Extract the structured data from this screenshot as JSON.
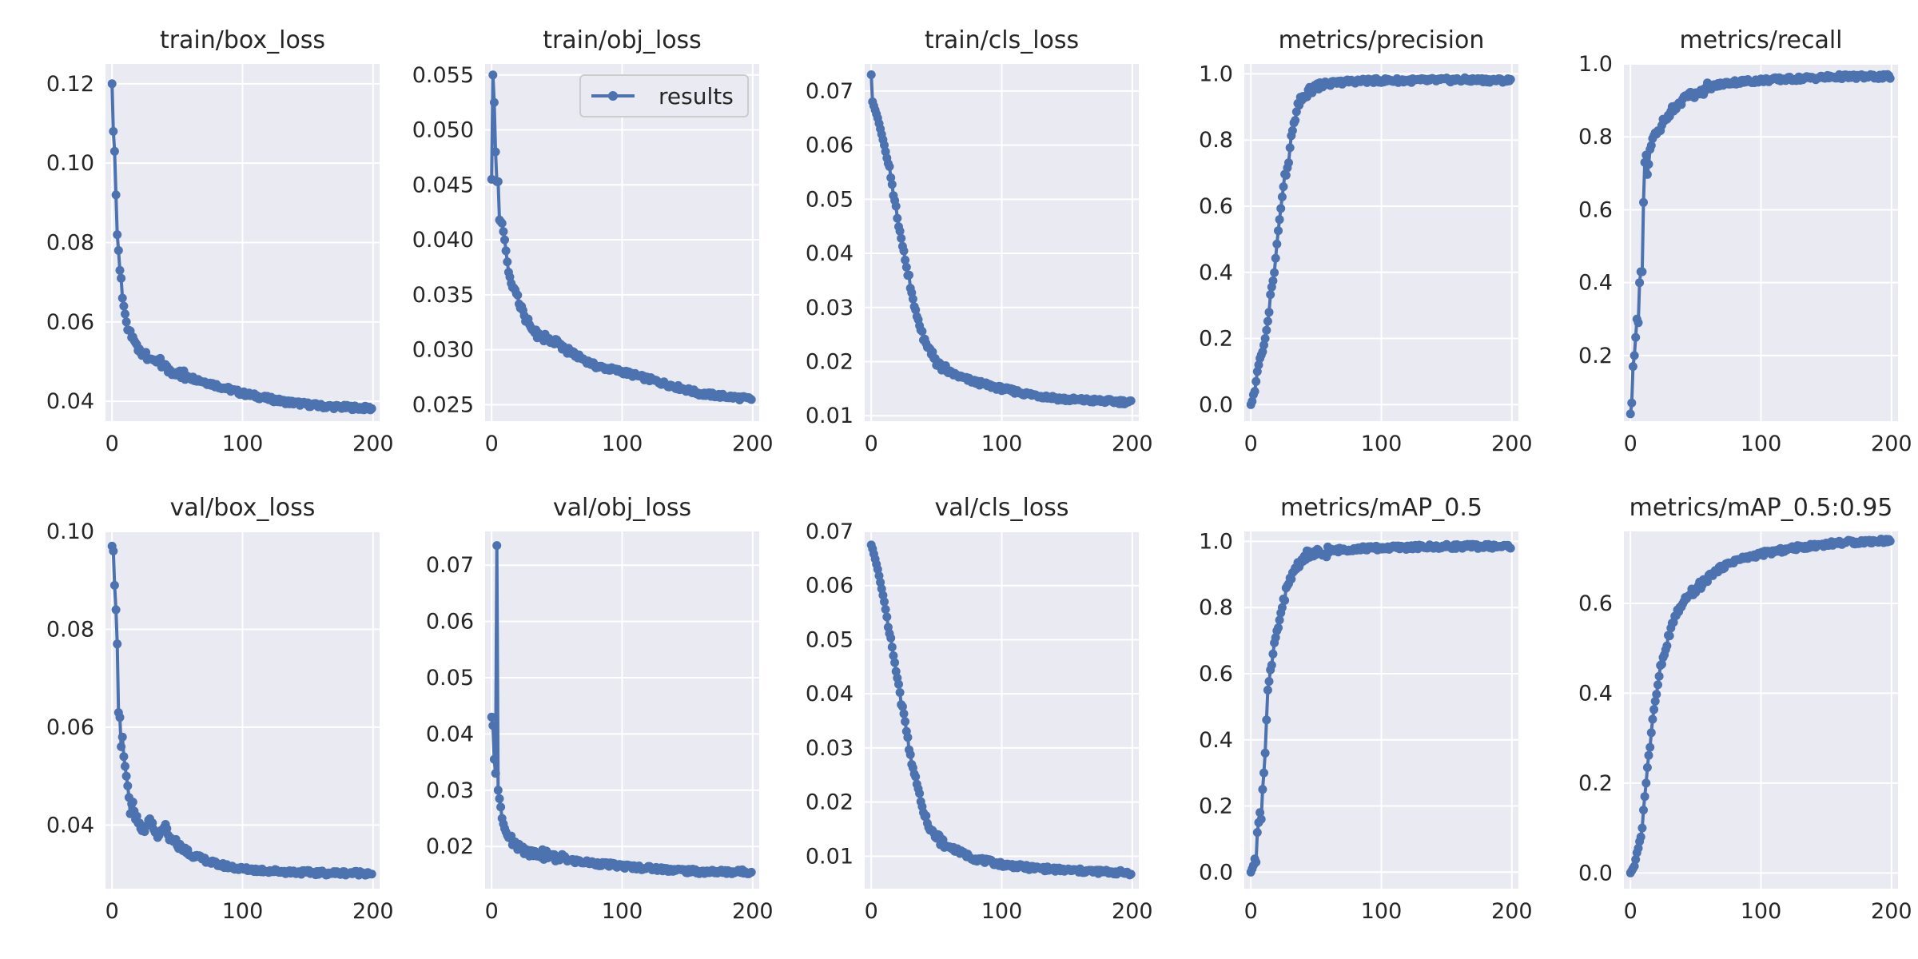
{
  "colors": {
    "series": "#4c72b0",
    "axes_bg": "#eaeaf2",
    "grid": "#ffffff",
    "text": "#262626",
    "legend_border": "#cccccc"
  },
  "chart_data": [
    {
      "type": "line",
      "title": "train/box_loss",
      "xlim": [
        -5,
        205
      ],
      "ylim": [
        0.035,
        0.125
      ],
      "xticks": [
        0,
        100,
        200
      ],
      "yticks": [
        0.04,
        0.06,
        0.08,
        0.1,
        0.12
      ],
      "ytick_labels": [
        "0.04",
        "0.06",
        "0.08",
        "0.10",
        "0.12"
      ],
      "grid": true,
      "curve": {
        "type": "decay",
        "x": [
          0,
          1,
          2,
          3,
          4,
          5,
          6,
          7,
          8,
          10,
          12,
          15,
          20,
          30,
          40,
          50,
          70,
          100,
          130,
          160,
          199
        ],
        "y": [
          0.12,
          0.108,
          0.103,
          0.092,
          0.082,
          0.078,
          0.073,
          0.071,
          0.066,
          0.062,
          0.058,
          0.056,
          0.053,
          0.051,
          0.049,
          0.047,
          0.045,
          0.042,
          0.04,
          0.0388,
          0.0382
        ]
      }
    },
    {
      "type": "line",
      "title": "train/obj_loss",
      "xlim": [
        -5,
        205
      ],
      "ylim": [
        0.0235,
        0.056
      ],
      "xticks": [
        0,
        100,
        200
      ],
      "yticks": [
        0.025,
        0.03,
        0.035,
        0.04,
        0.045,
        0.05,
        0.055
      ],
      "ytick_labels": [
        "0.025",
        "0.030",
        "0.035",
        "0.040",
        "0.045",
        "0.050",
        "0.055"
      ],
      "grid": true,
      "legend": {
        "label": "results",
        "position": "upper right"
      },
      "curve": {
        "type": "decay",
        "x": [
          0,
          1,
          2,
          3,
          4,
          5,
          6,
          8,
          10,
          12,
          15,
          20,
          25,
          30,
          40,
          50,
          60,
          80,
          100,
          130,
          160,
          199
        ],
        "y": [
          0.0455,
          0.055,
          0.0525,
          0.048,
          0.0453,
          0.0453,
          0.0418,
          0.0415,
          0.04,
          0.038,
          0.036,
          0.0345,
          0.033,
          0.032,
          0.031,
          0.0305,
          0.0298,
          0.0285,
          0.028,
          0.027,
          0.026,
          0.0255
        ]
      }
    },
    {
      "type": "line",
      "title": "train/cls_loss",
      "xlim": [
        -5,
        205
      ],
      "ylim": [
        0.009,
        0.075
      ],
      "xticks": [
        0,
        100,
        200
      ],
      "yticks": [
        0.01,
        0.02,
        0.03,
        0.04,
        0.05,
        0.06,
        0.07
      ],
      "ytick_labels": [
        "0.01",
        "0.02",
        "0.03",
        "0.04",
        "0.05",
        "0.06",
        "0.07"
      ],
      "grid": true,
      "curve": {
        "type": "decay",
        "x": [
          0,
          1,
          5,
          10,
          15,
          20,
          25,
          30,
          35,
          40,
          45,
          50,
          60,
          70,
          80,
          100,
          120,
          150,
          199
        ],
        "y": [
          0.073,
          0.068,
          0.065,
          0.06,
          0.054,
          0.047,
          0.04,
          0.034,
          0.028,
          0.0245,
          0.0215,
          0.0198,
          0.018,
          0.017,
          0.0162,
          0.015,
          0.014,
          0.013,
          0.0125
        ]
      }
    },
    {
      "type": "line",
      "title": "metrics/precision",
      "xlim": [
        -5,
        205
      ],
      "ylim": [
        -0.05,
        1.03
      ],
      "xticks": [
        0,
        100,
        200
      ],
      "yticks": [
        0,
        0.2,
        0.4,
        0.6,
        0.8,
        1.0
      ],
      "ytick_labels": [
        "0.0",
        "0.2",
        "0.4",
        "0.6",
        "0.8",
        "1.0"
      ],
      "grid": true,
      "curve": {
        "type": "rise",
        "x": [
          0,
          1,
          2,
          3,
          5,
          7,
          9,
          11,
          13,
          15,
          17,
          19,
          21,
          23,
          25,
          27,
          29,
          31,
          33,
          35,
          37,
          40,
          45,
          50,
          60,
          70,
          80,
          100,
          130,
          160,
          199
        ],
        "y": [
          0,
          0.01,
          0.03,
          0.04,
          0.1,
          0.14,
          0.16,
          0.2,
          0.25,
          0.33,
          0.37,
          0.45,
          0.52,
          0.6,
          0.66,
          0.7,
          0.74,
          0.8,
          0.85,
          0.88,
          0.91,
          0.93,
          0.95,
          0.96,
          0.97,
          0.975,
          0.978,
          0.98,
          0.98,
          0.982,
          0.98
        ]
      }
    },
    {
      "type": "line",
      "title": "metrics/recall",
      "xlim": [
        -5,
        205
      ],
      "ylim": [
        0.02,
        1.0
      ],
      "xticks": [
        0,
        100,
        200
      ],
      "yticks": [
        0.2,
        0.4,
        0.6,
        0.8,
        1.0
      ],
      "ytick_labels": [
        "0.2",
        "0.4",
        "0.6",
        "0.8",
        "1.0"
      ],
      "grid": true,
      "curve": {
        "type": "rise",
        "x": [
          0,
          1,
          2,
          3,
          4,
          5,
          6,
          7,
          8,
          9,
          10,
          11,
          12,
          13,
          14,
          15,
          16,
          18,
          20,
          22,
          25,
          30,
          35,
          40,
          50,
          60,
          70,
          80,
          100,
          130,
          160,
          199
        ],
        "y": [
          0.04,
          0.07,
          0.17,
          0.2,
          0.25,
          0.3,
          0.29,
          0.4,
          0.43,
          0.43,
          0.62,
          0.73,
          0.75,
          0.7,
          0.72,
          0.76,
          0.78,
          0.8,
          0.81,
          0.82,
          0.84,
          0.86,
          0.88,
          0.9,
          0.92,
          0.935,
          0.945,
          0.95,
          0.955,
          0.96,
          0.965,
          0.965
        ]
      }
    },
    {
      "type": "line",
      "title": "val/box_loss",
      "xlim": [
        -5,
        205
      ],
      "ylim": [
        0.027,
        0.1
      ],
      "xticks": [
        0,
        100,
        200
      ],
      "yticks": [
        0.04,
        0.06,
        0.08,
        0.1
      ],
      "ytick_labels": [
        "0.04",
        "0.06",
        "0.08",
        "0.10"
      ],
      "grid": true,
      "curve": {
        "type": "decay",
        "x": [
          0,
          1,
          2,
          3,
          4,
          5,
          6,
          7,
          8,
          9,
          10,
          12,
          14,
          16,
          18,
          20,
          25,
          30,
          35,
          40,
          45,
          50,
          60,
          70,
          80,
          100,
          130,
          160,
          199
        ],
        "y": [
          0.097,
          0.096,
          0.089,
          0.084,
          0.077,
          0.063,
          0.062,
          0.056,
          0.058,
          0.054,
          0.052,
          0.048,
          0.043,
          0.045,
          0.042,
          0.04,
          0.039,
          0.041,
          0.037,
          0.04,
          0.037,
          0.036,
          0.034,
          0.033,
          0.032,
          0.031,
          0.0305,
          0.0302,
          0.0302
        ]
      }
    },
    {
      "type": "line",
      "title": "val/obj_loss",
      "xlim": [
        -5,
        205
      ],
      "ylim": [
        0.0125,
        0.076
      ],
      "xticks": [
        0,
        100,
        200
      ],
      "yticks": [
        0.02,
        0.03,
        0.04,
        0.05,
        0.06,
        0.07
      ],
      "ytick_labels": [
        "0.02",
        "0.03",
        "0.04",
        "0.05",
        "0.06",
        "0.07"
      ],
      "grid": true,
      "curve": {
        "type": "decay",
        "x": [
          0,
          1,
          2,
          3,
          4,
          5,
          6,
          7,
          8,
          9,
          10,
          12,
          15,
          20,
          25,
          30,
          40,
          50,
          60,
          80,
          100,
          130,
          160,
          199
        ],
        "y": [
          0.043,
          0.0415,
          0.0355,
          0.033,
          0.0735,
          0.03,
          0.0285,
          0.027,
          0.025,
          0.024,
          0.0232,
          0.022,
          0.021,
          0.02,
          0.0195,
          0.019,
          0.0185,
          0.018,
          0.0175,
          0.017,
          0.0165,
          0.016,
          0.0155,
          0.0155
        ]
      }
    },
    {
      "type": "line",
      "title": "val/cls_loss",
      "xlim": [
        -5,
        205
      ],
      "ylim": [
        0.004,
        0.07
      ],
      "xticks": [
        0,
        100,
        200
      ],
      "yticks": [
        0.01,
        0.02,
        0.03,
        0.04,
        0.05,
        0.06,
        0.07
      ],
      "ytick_labels": [
        "0.01",
        "0.02",
        "0.03",
        "0.04",
        "0.05",
        "0.06",
        "0.07"
      ],
      "grid": true,
      "curve": {
        "type": "decay",
        "x": [
          0,
          1,
          5,
          10,
          15,
          20,
          25,
          30,
          35,
          40,
          45,
          50,
          60,
          70,
          80,
          100,
          120,
          150,
          199
        ],
        "y": [
          0.0675,
          0.0668,
          0.063,
          0.057,
          0.05,
          0.043,
          0.036,
          0.029,
          0.023,
          0.0185,
          0.0155,
          0.0135,
          0.0118,
          0.0105,
          0.0095,
          0.0085,
          0.0079,
          0.0074,
          0.0069
        ]
      }
    },
    {
      "type": "line",
      "title": "metrics/mAP_0.5",
      "xlim": [
        -5,
        205
      ],
      "ylim": [
        -0.05,
        1.03
      ],
      "xticks": [
        0,
        100,
        200
      ],
      "yticks": [
        0,
        0.2,
        0.4,
        0.6,
        0.8,
        1.0
      ],
      "ytick_labels": [
        "0.0",
        "0.2",
        "0.4",
        "0.6",
        "0.8",
        "1.0"
      ],
      "grid": true,
      "curve": {
        "type": "rise",
        "x": [
          0,
          1,
          2,
          3,
          4,
          5,
          6,
          7,
          8,
          9,
          10,
          11,
          12,
          13,
          14,
          16,
          18,
          20,
          22,
          24,
          26,
          28,
          30,
          33,
          36,
          40,
          45,
          50,
          60,
          70,
          80,
          100,
          130,
          160,
          199
        ],
        "y": [
          0,
          0.01,
          0.02,
          0.04,
          0.03,
          0.12,
          0.15,
          0.18,
          0.16,
          0.25,
          0.3,
          0.36,
          0.46,
          0.56,
          0.58,
          0.62,
          0.68,
          0.72,
          0.76,
          0.8,
          0.83,
          0.86,
          0.88,
          0.91,
          0.93,
          0.95,
          0.96,
          0.965,
          0.97,
          0.975,
          0.978,
          0.98,
          0.983,
          0.985,
          0.985
        ]
      }
    },
    {
      "type": "line",
      "title": "metrics/mAP_0.5:0.95",
      "xlim": [
        -5,
        205
      ],
      "ylim": [
        -0.035,
        0.76
      ],
      "xticks": [
        0,
        100,
        200
      ],
      "yticks": [
        0,
        0.2,
        0.4,
        0.6
      ],
      "ytick_labels": [
        "0.0",
        "0.2",
        "0.4",
        "0.6"
      ],
      "grid": true,
      "curve": {
        "type": "rise",
        "x": [
          0,
          1,
          2,
          3,
          4,
          5,
          6,
          7,
          8,
          9,
          10,
          12,
          14,
          16,
          18,
          20,
          22,
          24,
          26,
          28,
          30,
          33,
          36,
          40,
          45,
          50,
          55,
          60,
          70,
          80,
          100,
          130,
          160,
          199
        ],
        "y": [
          0,
          0.005,
          0.01,
          0.015,
          0.03,
          0.045,
          0.055,
          0.07,
          0.08,
          0.1,
          0.14,
          0.2,
          0.25,
          0.32,
          0.36,
          0.4,
          0.44,
          0.47,
          0.49,
          0.51,
          0.53,
          0.56,
          0.58,
          0.6,
          0.62,
          0.63,
          0.645,
          0.66,
          0.68,
          0.695,
          0.71,
          0.725,
          0.735,
          0.74
        ]
      }
    }
  ]
}
